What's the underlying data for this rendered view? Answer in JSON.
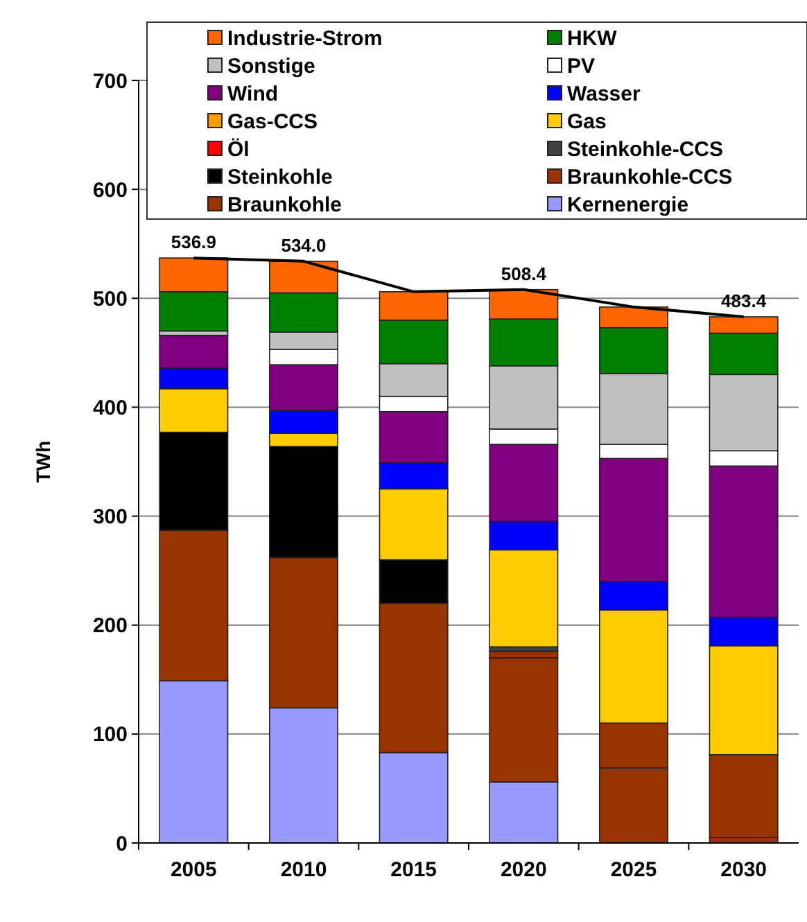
{
  "chart_data": {
    "type": "bar",
    "stacked": true,
    "ylabel": "TWh",
    "categories": [
      "2005",
      "2010",
      "2015",
      "2020",
      "2025",
      "2030"
    ],
    "ylim": [
      0,
      700
    ],
    "yticks": [
      0,
      100,
      200,
      300,
      400,
      500,
      600,
      700
    ],
    "grid": "y",
    "legend": "top",
    "series": [
      {
        "name": "Kernenergie",
        "color": "#9999ff",
        "values": [
          149,
          124,
          83,
          56,
          0,
          0
        ]
      },
      {
        "name": "Braunkohle",
        "color": "#993300",
        "values": [
          138,
          138,
          137,
          114,
          69,
          5
        ]
      },
      {
        "name": "Braunkohle-CCS",
        "color": "#993300",
        "values": [
          0,
          0,
          0,
          6,
          41,
          76
        ]
      },
      {
        "name": "Steinkohle",
        "color": "#000000",
        "values": [
          90,
          102,
          40,
          0,
          0,
          0
        ]
      },
      {
        "name": "Steinkohle-CCS",
        "color": "#404040",
        "values": [
          0,
          0,
          0,
          4,
          0,
          0
        ]
      },
      {
        "name": "Öl",
        "color": "#ff0000",
        "values": [
          0,
          0,
          0,
          0,
          0,
          0
        ]
      },
      {
        "name": "Gas",
        "color": "#ffcc00",
        "values": [
          40,
          12,
          65,
          89,
          104,
          100
        ]
      },
      {
        "name": "Gas-CCS",
        "color": "#ff9900",
        "values": [
          0,
          0,
          0,
          0,
          0,
          0
        ]
      },
      {
        "name": "Wasser",
        "color": "#0000ff",
        "values": [
          19,
          21,
          24,
          26,
          26,
          26
        ]
      },
      {
        "name": "Wind",
        "color": "#800080",
        "values": [
          30,
          42,
          47,
          71,
          113,
          139
        ]
      },
      {
        "name": "PV",
        "color": "#ffffff",
        "values": [
          null,
          14,
          14,
          14,
          13,
          14
        ]
      },
      {
        "name": "Sonstige",
        "color": "#c0c0c0",
        "values": [
          4,
          16,
          30,
          58,
          65,
          70
        ]
      },
      {
        "name": "HKW",
        "color": "#008000",
        "values": [
          36,
          36,
          40,
          43,
          42,
          38
        ]
      },
      {
        "name": "Industrie-Strom",
        "color": "#ff6600",
        "values": [
          31,
          29,
          26,
          27,
          19,
          15
        ]
      },
      {
        "type": "line",
        "color": "#000000",
        "values": [
          537,
          534,
          506,
          508,
          492,
          483
        ]
      }
    ],
    "totals": [
      "536.9",
      "534.0",
      null,
      "508.4",
      null,
      "483.4"
    ]
  }
}
